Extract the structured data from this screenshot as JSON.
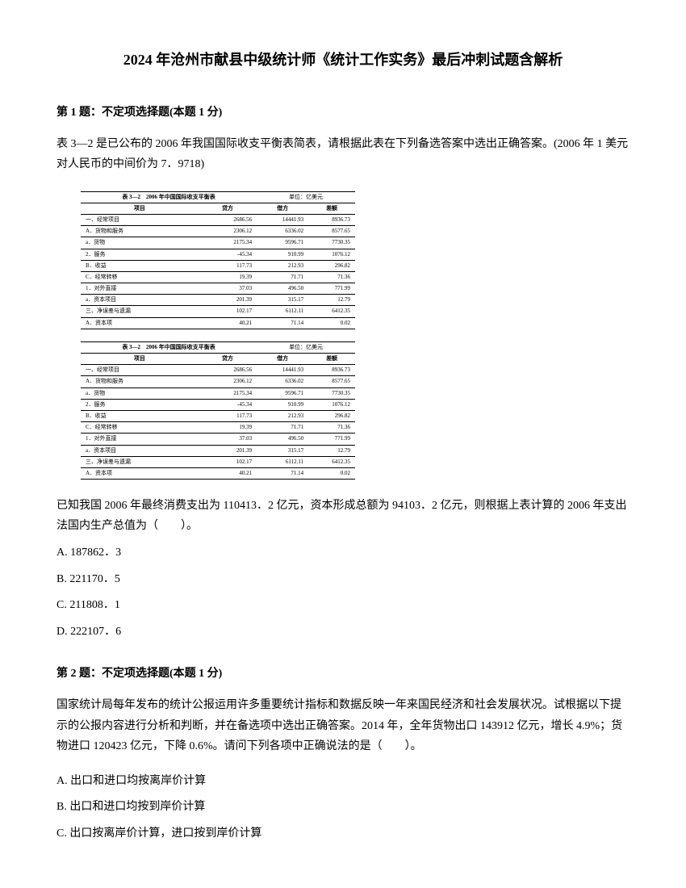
{
  "title": "2024 年沧州市献县中级统计师《统计工作实务》最后冲刺试题含解析",
  "q1": {
    "header": "第 1 题：不定项选择题(本题 1 分)",
    "text": "表 3—2 是已公布的 2006 年我国国际收支平衡表简表，请根据此表在下列备选答案中选出正确答案。(2006 年 1 美元对人民币的中间价为 7．9718)",
    "table_title": "表 3—2　2006 年中国国际收支平衡表",
    "table_unit": "单位：亿美元",
    "cols": [
      "项目",
      "贷方",
      "借方",
      "差额"
    ],
    "rows": [
      [
        "一、经常项目",
        "2686.56",
        "14441.93",
        "8936.73"
      ],
      [
        "A．货物和服务",
        "2306.12",
        "6336.02",
        "8577.65"
      ],
      [
        "a．货物",
        "2175.34",
        "9596.71",
        "7730.35"
      ],
      [
        "2．服务",
        "-45.34",
        "910.99",
        "1076.12"
      ],
      [
        "B．收益",
        "117.73",
        "212.93",
        "296.82"
      ],
      [
        "C．经常转移",
        "19.39",
        "71.71",
        "71.36"
      ],
      [
        "1．对外直接",
        "37.03",
        "496.50",
        "771.99"
      ],
      [
        "a．资本项目",
        "201.39",
        "315.17",
        "12.79"
      ],
      [
        "三、净误差与遗漏",
        "102.17",
        "6112.11",
        "6412.35"
      ],
      [
        "A．资本项",
        "40.21",
        "71.14",
        "0.02"
      ]
    ],
    "text2": "已知我国 2006 年最终消费支出为 110413．2 亿元，资本形成总额为 94103．2 亿元，则根据上表计算的 2006 年支出法国内生产总值为（　　）。",
    "options": {
      "a": "A. 187862．3",
      "b": "B. 221170．5",
      "c": "C. 211808．1",
      "d": "D. 222107．6"
    }
  },
  "q2": {
    "header": "第 2 题：不定项选择题(本题 1 分)",
    "text": "国家统计局每年发布的统计公报运用许多重要统计指标和数据反映一年来国民经济和社会发展状况。试根据以下提示的公报内容进行分析和判断，并在备选项中选出正确答案。2014 年，全年货物出口 143912 亿元，增长 4.9%；货物进口 120423 亿元，下降 0.6%。请问下列各项中正确说法的是（　　）。",
    "options": {
      "a": "A. 出口和进口均按离岸价计算",
      "b": "B. 出口和进口均按到岸价计算",
      "c": "C. 出口按离岸价计算，进口按到岸价计算"
    }
  }
}
